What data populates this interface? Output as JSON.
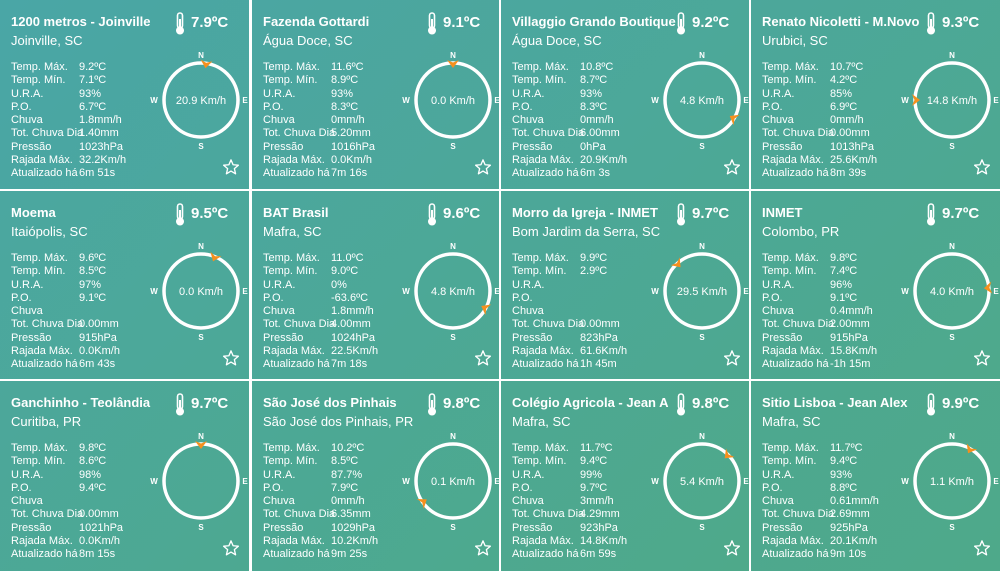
{
  "labels": {
    "max": "Temp. Máx.",
    "min": "Temp. Mín.",
    "ura": "U.R.A.",
    "po": "P.O.",
    "chuva": "Chuva",
    "tot": "Tot. Chuva Dia",
    "pressao": "Pressão",
    "rajada": "Rajada Máx.",
    "atual": "Atualizado há"
  },
  "compass": {
    "n": "N",
    "s": "S",
    "e": "E",
    "w": "W"
  },
  "icons": {
    "thermometer": "thermometer-icon",
    "star": "star-outline-icon",
    "arrow": "wind-direction-arrow-icon"
  },
  "colors": {
    "teal": "#4aa6a6",
    "green": "#4ea98a",
    "arrow": "#f5901e",
    "ring": "#ffffff",
    "text": "#ffffff"
  },
  "stations": [
    {
      "name": "1200 metros - Joinville",
      "city": "Joinville, SC",
      "temp": "7.9ºC",
      "max": "9.2ºC",
      "min": "7.1ºC",
      "ura": "93%",
      "po": "6.7ºC",
      "chuva": "1.8mm/h",
      "tot": "1.40mm",
      "pressao": "1023hPa",
      "rajada": "32.2Km/h",
      "atual": "6m 51s",
      "wind": "20.9 Km/h",
      "dir": 8
    },
    {
      "name": "Fazenda Gottardi",
      "city": "Água Doce, SC",
      "temp": "9.1ºC",
      "max": "11.6ºC",
      "min": "8.9ºC",
      "ura": "93%",
      "po": "8.3ºC",
      "chuva": "0mm/h",
      "tot": "5.20mm",
      "pressao": "1016hPa",
      "rajada": "0.0Km/h",
      "atual": "7m 16s",
      "wind": "0.0 Km/h",
      "dir": 0
    },
    {
      "name": "Villaggio Grando Boutique",
      "city": "Água Doce, SC",
      "temp": "9.2ºC",
      "max": "10.8ºC",
      "min": "8.7ºC",
      "ura": "93%",
      "po": "8.3ºC",
      "chuva": "0mm/h",
      "tot": "6.00mm",
      "pressao": "0hPa",
      "rajada": "20.9Km/h",
      "atual": "6m 3s",
      "wind": "4.8 Km/h",
      "dir": 120
    },
    {
      "name": "Renato Nicoletti - M.Novo",
      "city": "Urubici, SC",
      "temp": "9.3ºC",
      "max": "10.7ºC",
      "min": "4.2ºC",
      "ura": "85%",
      "po": "6.9ºC",
      "chuva": "0mm/h",
      "tot": "0.00mm",
      "pressao": "1013hPa",
      "rajada": "25.6Km/h",
      "atual": "8m 39s",
      "wind": "14.8 Km/h",
      "dir": 270
    },
    {
      "name": "Moema",
      "city": "Itaiópolis, SC",
      "temp": "9.5ºC",
      "max": "9.6ºC",
      "min": "8.5ºC",
      "ura": "97%",
      "po": "9.1ºC",
      "chuva": "",
      "tot": "0.00mm",
      "pressao": "915hPa",
      "rajada": "0.0Km/h",
      "atual": "6m 43s",
      "wind": "0.0 Km/h",
      "dir": 22
    },
    {
      "name": "BAT Brasil",
      "city": "Mafra, SC",
      "temp": "9.6ºC",
      "max": "11.0ºC",
      "min": "9.0ºC",
      "ura": "0%",
      "po": "-63.6ºC",
      "chuva": "1.8mm/h",
      "tot": "4.00mm",
      "pressao": "1024hPa",
      "rajada": "22.5Km/h",
      "atual": "7m 18s",
      "wind": "4.8 Km/h",
      "dir": 118
    },
    {
      "name": "Morro da Igreja - INMET",
      "city": "Bom Jardim da Serra, SC",
      "temp": "9.7ºC",
      "max": "9.9ºC",
      "min": "2.9ºC",
      "ura": "",
      "po": "",
      "chuva": "",
      "tot": "0.00mm",
      "pressao": "823hPa",
      "rajada": "61.6Km/h",
      "atual": "1h 45m",
      "wind": "29.5 Km/h",
      "dir": 318
    },
    {
      "name": "INMET",
      "city": "Colombo, PR",
      "temp": "9.7ºC",
      "max": "9.8ºC",
      "min": "7.4ºC",
      "ura": "96%",
      "po": "9.1ºC",
      "chuva": "0.4mm/h",
      "tot": "2.00mm",
      "pressao": "915hPa",
      "rajada": "15.8Km/h",
      "atual": "-1h 15m",
      "wind": "4.0 Km/h",
      "dir": 85
    },
    {
      "name": "Ganchinho - Teolândia",
      "city": "Curitiba, PR",
      "temp": "9.7ºC",
      "max": "9.8ºC",
      "min": "8.6ºC",
      "ura": "98%",
      "po": "9.4ºC",
      "chuva": "",
      "tot": "0.00mm",
      "pressao": "1021hPa",
      "rajada": "0.0Km/h",
      "atual": "8m 15s",
      "wind": "",
      "dir": 0
    },
    {
      "name": "São José dos Pinhais",
      "city": "São José dos Pinhais, PR",
      "temp": "9.8ºC",
      "max": "10.2ºC",
      "min": "8.5ºC",
      "ura": "87.7%",
      "po": "7.9ºC",
      "chuva": "0mm/h",
      "tot": "6.35mm",
      "pressao": "1029hPa",
      "rajada": "10.2Km/h",
      "atual": "9m 25s",
      "wind": "0.1 Km/h",
      "dir": 235
    },
    {
      "name": "Colégio Agricola - Jean A",
      "city": "Mafra, SC",
      "temp": "9.8ºC",
      "max": "11.7ºC",
      "min": "9.4ºC",
      "ura": "99%",
      "po": "9.7ºC",
      "chuva": "3mm/h",
      "tot": "4.29mm",
      "pressao": "923hPa",
      "rajada": "14.8Km/h",
      "atual": "6m 59s",
      "wind": "5.4 Km/h",
      "dir": 45
    },
    {
      "name": "Sitio Lisboa - Jean Alex",
      "city": "Mafra, SC",
      "temp": "9.9ºC",
      "max": "11.7ºC",
      "min": "9.4ºC",
      "ura": "93%",
      "po": "8.8ºC",
      "chuva": "0.61mm/h",
      "tot": "2.69mm",
      "pressao": "925hPa",
      "rajada": "20.1Km/h",
      "atual": "9m 10s",
      "wind": "1.1 Km/h",
      "dir": 30
    }
  ]
}
